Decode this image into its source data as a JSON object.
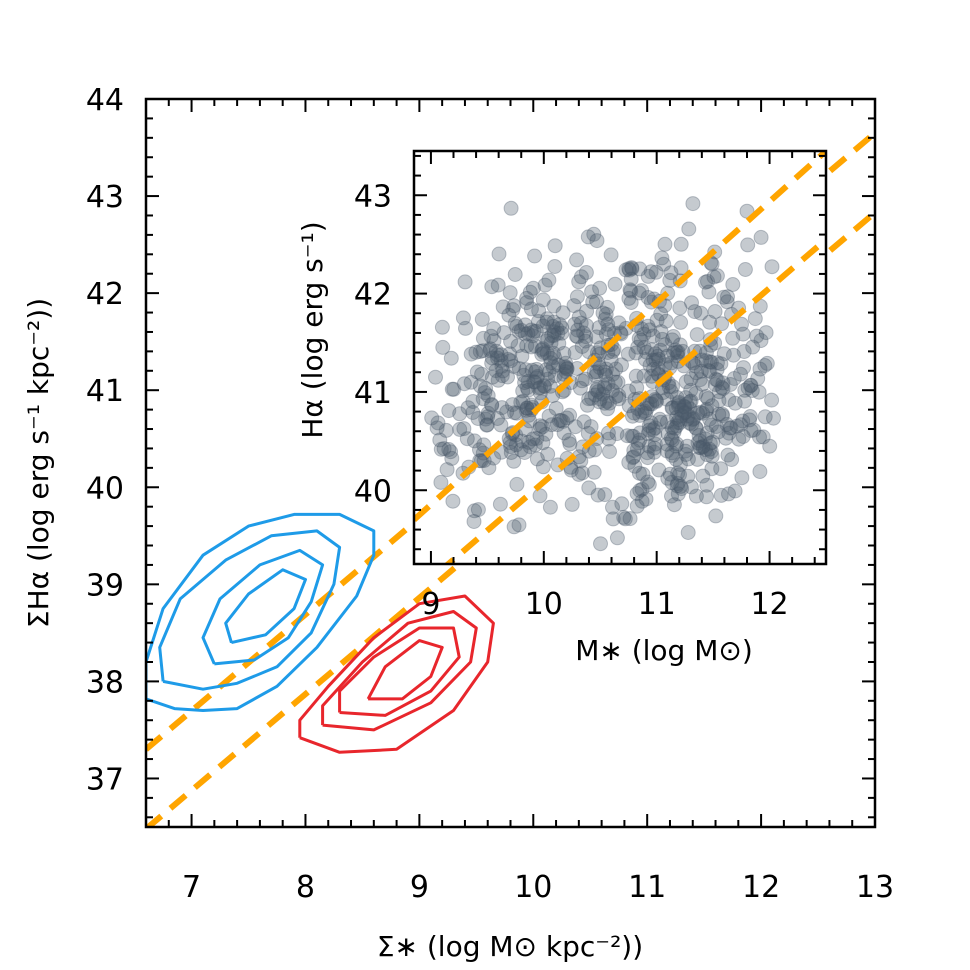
{
  "chart_data": [
    {
      "type": "line",
      "role": "main",
      "xlabel": "Σ∗ (log M⊙ kpc⁻²))",
      "ylabel": "ΣHα (log erg s⁻¹ kpc⁻²))",
      "xlim": [
        6.6,
        13
      ],
      "ylim": [
        36.5,
        44
      ],
      "xticks": [
        7,
        8,
        9,
        10,
        11,
        12,
        13
      ],
      "yticks": [
        37,
        38,
        39,
        40,
        41,
        42,
        43,
        44
      ],
      "series": [
        {
          "color": "#FFA500",
          "style": "dashed",
          "x": [
            6.6,
            13
          ],
          "y": [
            37.3,
            43.65
          ]
        },
        {
          "color": "#FFA500",
          "style": "dashed",
          "x": [
            6.6,
            13
          ],
          "y": [
            36.48,
            42.83
          ]
        },
        {
          "color": "#1E9BE8",
          "style": "contour",
          "levels": [
            {
              "x": [
                6.6,
                6.85,
                7.1,
                7.4,
                7.75,
                8.1,
                8.45,
                8.6,
                8.6,
                8.3,
                7.9,
                7.5,
                7.1,
                6.75,
                6.6,
                6.6
              ],
              "y": [
                37.82,
                37.72,
                37.7,
                37.72,
                37.95,
                38.35,
                38.88,
                39.3,
                39.55,
                39.72,
                39.72,
                39.6,
                39.3,
                38.75,
                38.2,
                37.82
              ]
            },
            {
              "x": [
                6.75,
                7.1,
                7.4,
                7.75,
                8.05,
                8.25,
                8.3,
                8.1,
                7.7,
                7.3,
                6.9,
                6.72,
                6.75
              ],
              "y": [
                38.0,
                37.92,
                37.98,
                38.15,
                38.5,
                39.0,
                39.38,
                39.55,
                39.5,
                39.25,
                38.85,
                38.35,
                38.0
              ]
            },
            {
              "x": [
                7.2,
                7.55,
                7.85,
                8.05,
                8.15,
                7.95,
                7.6,
                7.25,
                7.1,
                7.2
              ],
              "y": [
                38.18,
                38.22,
                38.45,
                38.82,
                39.2,
                39.35,
                39.2,
                38.85,
                38.45,
                38.18
              ]
            },
            {
              "x": [
                7.35,
                7.65,
                7.9,
                8.0,
                7.8,
                7.5,
                7.3,
                7.35
              ],
              "y": [
                38.4,
                38.48,
                38.75,
                39.05,
                39.15,
                38.9,
                38.6,
                38.4
              ]
            }
          ]
        },
        {
          "color": "#E8262C",
          "style": "contour",
          "levels": [
            {
              "x": [
                7.95,
                8.3,
                8.8,
                9.3,
                9.6,
                9.65,
                9.4,
                9.0,
                8.6,
                8.2,
                7.95,
                7.95
              ],
              "y": [
                37.42,
                37.27,
                37.3,
                37.7,
                38.2,
                38.6,
                38.88,
                38.8,
                38.45,
                37.95,
                37.6,
                37.42
              ]
            },
            {
              "x": [
                8.15,
                8.6,
                9.1,
                9.45,
                9.5,
                9.3,
                8.9,
                8.5,
                8.15,
                8.15
              ],
              "y": [
                37.55,
                37.5,
                37.78,
                38.2,
                38.55,
                38.72,
                38.6,
                38.2,
                37.75,
                37.55
              ]
            },
            {
              "x": [
                8.3,
                8.7,
                9.1,
                9.35,
                9.3,
                9.0,
                8.6,
                8.3,
                8.3
              ],
              "y": [
                37.68,
                37.65,
                37.9,
                38.25,
                38.55,
                38.55,
                38.25,
                37.9,
                37.68
              ]
            },
            {
              "x": [
                8.55,
                8.85,
                9.1,
                9.2,
                9.0,
                8.7,
                8.55
              ],
              "y": [
                37.82,
                37.82,
                38.05,
                38.35,
                38.42,
                38.15,
                37.82
              ]
            }
          ]
        }
      ]
    },
    {
      "type": "scatter",
      "role": "inset",
      "xlabel": "M∗ (log M⊙)",
      "ylabel": "Hα (log erg s⁻¹)",
      "xlim": [
        8.85,
        12.5
      ],
      "ylim": [
        39.25,
        43.45
      ],
      "xticks": [
        9,
        10,
        11,
        12
      ],
      "yticks": [
        40,
        41,
        42,
        43
      ],
      "points_color": "#4A5A6A",
      "clusters": [
        {
          "cx": 9.95,
          "cy": 41.15,
          "sx": 0.55,
          "sy": 0.55,
          "count": 380
        },
        {
          "cx": 11.25,
          "cy": 40.65,
          "sx": 0.45,
          "sy": 0.45,
          "count": 300
        },
        {
          "cx": 11.0,
          "cy": 41.75,
          "sx": 0.5,
          "sy": 0.45,
          "count": 110
        }
      ],
      "series": [
        {
          "color": "#FFA500",
          "style": "dashed",
          "x": [
            8.85,
            12.5
          ],
          "y": [
            39.7,
            43.45
          ]
        },
        {
          "color": "#FFA500",
          "style": "dashed",
          "x": [
            8.85,
            12.5
          ],
          "y": [
            38.95,
            42.55
          ]
        }
      ]
    }
  ]
}
